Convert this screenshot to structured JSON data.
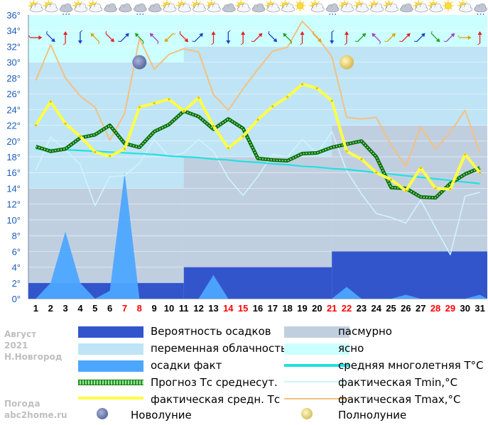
{
  "chart_data": {
    "type": "line",
    "title": "",
    "month": "Август",
    "year": "2021",
    "city": "Н.Новгород",
    "y_unit": "°",
    "ylim": [
      0,
      36
    ],
    "y_ticks": [
      "0°",
      "2°",
      "4°",
      "6°",
      "8°",
      "10°",
      "12°",
      "14°",
      "16°",
      "18°",
      "20°",
      "22°",
      "24°",
      "26°",
      "28°",
      "30°",
      "32°",
      "34°",
      "36°"
    ],
    "days": [
      "1",
      "2",
      "3",
      "4",
      "5",
      "6",
      "7",
      "8",
      "9",
      "10",
      "11",
      "12",
      "13",
      "14",
      "15",
      "16",
      "17",
      "18",
      "19",
      "20",
      "21",
      "22",
      "23",
      "24",
      "25",
      "26",
      "27",
      "28",
      "29",
      "30",
      "31"
    ],
    "red_days": [
      7,
      8,
      14,
      15,
      21,
      22,
      28,
      29
    ],
    "cloud_bands": [
      {
        "from_day": 1,
        "to_day": 11,
        "clear_above": 30,
        "variable_from": 14,
        "overcast_below": 14
      },
      {
        "from_day": 11,
        "to_day": 21,
        "clear_above": 32,
        "variable_from": 18,
        "overcast_below": 18
      },
      {
        "from_day": 21,
        "to_day": 31,
        "clear_above": 32,
        "variable_from": 22,
        "overcast_below": 22
      }
    ],
    "precip_probability_bands": [
      {
        "from_day": 1,
        "to_day": 11,
        "value": 2
      },
      {
        "from_day": 11,
        "to_day": 21,
        "value": 4
      },
      {
        "from_day": 21,
        "to_day": 31,
        "value": 6
      }
    ],
    "series": [
      {
        "name": "осадки факт",
        "values": [
          0,
          2,
          8.5,
          2,
          0,
          1,
          16,
          0,
          0,
          0,
          0,
          0,
          3,
          0,
          0,
          0,
          0,
          0,
          0,
          0,
          0,
          1.5,
          0,
          0,
          0,
          0.5,
          0,
          0,
          0,
          0,
          0.5
        ]
      },
      {
        "name": "Прогноз Тс среднесут.",
        "values": [
          19.3,
          18.7,
          19.0,
          20.4,
          20.8,
          22.0,
          19.7,
          19.2,
          21.2,
          22.1,
          23.8,
          23.1,
          21.5,
          22.8,
          21.6,
          17.8,
          17.6,
          17.5,
          18.4,
          18.5,
          19.2,
          19.6,
          20.0,
          18.0,
          14.1,
          14.0,
          12.9,
          12.8,
          14.6,
          15.8,
          16.6
        ]
      },
      {
        "name": "фактическая средн. Тс",
        "values": [
          22.0,
          25.0,
          22.2,
          20.6,
          18.6,
          18.1,
          19.0,
          24.3,
          24.8,
          25.3,
          23.8,
          25.5,
          21.9,
          19.1,
          20.6,
          22.7,
          24.4,
          25.6,
          27.2,
          26.7,
          25.1,
          18.7,
          17.7,
          16.0,
          15.1,
          13.7,
          16.6,
          14.0,
          13.9,
          18.3,
          16.0
        ]
      },
      {
        "name": "средняя многолетняя T°C",
        "values": [
          19.0,
          18.9,
          18.9,
          18.8,
          18.7,
          18.6,
          18.5,
          18.4,
          18.3,
          18.1,
          18.0,
          17.9,
          17.7,
          17.6,
          17.4,
          17.3,
          17.1,
          17.0,
          16.8,
          16.7,
          16.5,
          16.4,
          16.2,
          16.0,
          15.8,
          15.6,
          15.4,
          15.2,
          15.0,
          14.8,
          14.6
        ]
      },
      {
        "name": "фактическая Tmin,°C",
        "values": [
          16.3,
          20.5,
          18.9,
          17.0,
          11.8,
          15.5,
          15.6,
          17.2,
          20.2,
          18.0,
          18.5,
          20.2,
          18.7,
          15.3,
          13.1,
          15.5,
          18.3,
          18.0,
          20.2,
          18.4,
          21.2,
          16.2,
          13.3,
          10.8,
          10.3,
          9.6,
          12.5,
          9.0,
          5.6,
          13.0,
          13.5
        ]
      },
      {
        "name": "фактическая Tmax,°C",
        "values": [
          27.7,
          32.2,
          28.0,
          25.7,
          24.3,
          20.1,
          23.5,
          33.0,
          29.1,
          31.0,
          31.7,
          31.3,
          25.9,
          23.9,
          26.6,
          29.1,
          31.4,
          31.9,
          35.2,
          33.2,
          30.7,
          23.0,
          22.8,
          23.0,
          19.5,
          16.8,
          21.8,
          19.0,
          21.1,
          23.9,
          18.5
        ]
      }
    ],
    "moon_phases": [
      {
        "name": "Новолуние",
        "day": 8,
        "y": 30
      },
      {
        "name": "Полнолуние",
        "day": 22,
        "y": 30
      }
    ],
    "weather_icons": [
      "sun-cloud",
      "sun-cloud",
      "cloud-rain",
      "sun-cloud",
      "sun-cloud",
      "cloud",
      "cloud",
      "cloud-rain",
      "cloud",
      "sun-cloud",
      "sun-cloud",
      "sun-cloud",
      "sun-cloud",
      "cloud",
      "sun-cloud",
      "cloud",
      "sun-cloud",
      "sun-cloud",
      "sun",
      "sun-cloud",
      "cloud-rain",
      "sun-cloud",
      "sun-cloud",
      "sun-cloud",
      "sun-cloud",
      "cloud",
      "sun-cloud",
      "sun-cloud",
      "sun",
      "sun-cloud",
      "cloud-rain"
    ],
    "wind_icons": [
      "arrow-e",
      "arrow-se",
      "arrow-n",
      "arrow-s",
      "arrow-nw",
      "arrow-se",
      "arrow-ne",
      "arrow-nw",
      "arrow-nw",
      "arrow-sw",
      "arrow-se",
      "arrow-ne",
      "arrow-n",
      "arrow-s",
      "arrow-n",
      "arrow-ne",
      "arrow-se",
      "arrow-nw",
      "arrow-n",
      "arrow-se",
      "arrow-s",
      "arrow-n",
      "arrow-ne",
      "arrow-nw",
      "arrow-ne",
      "arrow-ne",
      "arrow-ne",
      "arrow-se",
      "arrow-ne",
      "arrow-e",
      "arrow-n"
    ]
  },
  "legend": {
    "precip_prob": "Вероятность осадков",
    "overcast": "пасмурно",
    "variable": "переменная облачность",
    "clear": "ясно",
    "precip_fact": "осадки факт",
    "avg_longterm": "средняя многолетняя T°C",
    "forecast_avg": "Прогноз Тс среднесут.",
    "tmin": "фактическая Tmin,°C",
    "tavg_fact": "фактическая средн. Тс",
    "tmax": "фактическая Tmax,°C",
    "new_moon": "Новолуние",
    "full_moon": "Полнолуние"
  },
  "side": {
    "month": "Август",
    "year": "2021",
    "city": "Н.Новгород",
    "site_title": "Погода",
    "site": "abc2home.ru"
  },
  "colors": {
    "clear": "#ccffff",
    "variable": "#bfe4f5",
    "overcast": "#c0cfe0",
    "precip_prob": "#3355cc",
    "precip_fact": "#4da6ff",
    "forecast_avg": "#1a9a1a",
    "tavg_fact": "#ffff44",
    "avg_longterm": "#22e0e0",
    "tmin": "#ccf5ff",
    "tmax": "#f5c080",
    "day_red": "#ff0000",
    "axis_text": "#1a5cb8"
  }
}
